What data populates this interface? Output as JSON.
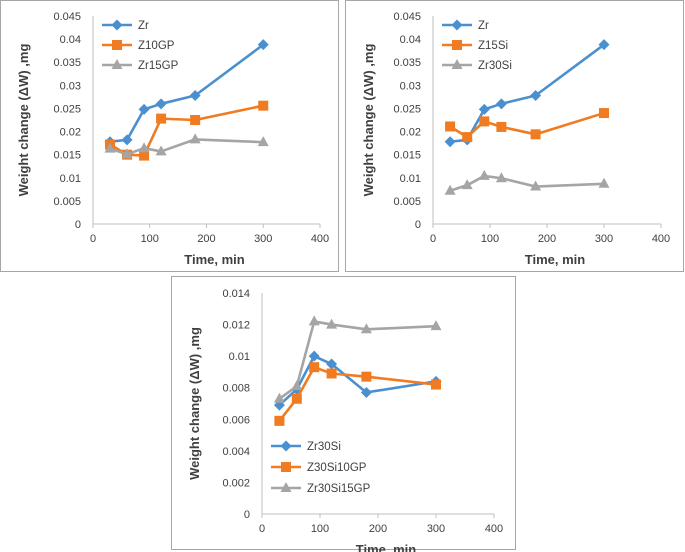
{
  "chart_data": [
    {
      "type": "line",
      "xlabel": "Time, min",
      "ylabel": "Weight change  (ΔW) ,mg",
      "xlim": [
        0,
        400
      ],
      "ylim": [
        0,
        0.045
      ],
      "xticks": [
        "0",
        "100",
        "200",
        "300",
        "400"
      ],
      "yticks": [
        "0",
        "0.005",
        "0.01",
        "0.015",
        "0.02",
        "0.025",
        "0.03",
        "0.035",
        "0.04",
        "0.045"
      ],
      "legend_position": "top-left",
      "series": [
        {
          "name": "Zr",
          "color": "#4a90d0",
          "marker": "diamond",
          "x": [
            30,
            60,
            90,
            120,
            180,
            300
          ],
          "y": [
            0.0178,
            0.0182,
            0.0248,
            0.026,
            0.0278,
            0.0388
          ]
        },
        {
          "name": "Z10GP",
          "color": "#f07b20",
          "marker": "square",
          "x": [
            30,
            60,
            90,
            120,
            180,
            300
          ],
          "y": [
            0.0172,
            0.015,
            0.0148,
            0.0228,
            0.0225,
            0.0256
          ]
        },
        {
          "name": "Zr15GP",
          "color": "#a5a5a5",
          "marker": "triangle",
          "x": [
            30,
            60,
            90,
            120,
            180,
            300
          ],
          "y": [
            0.0163,
            0.0151,
            0.0164,
            0.0157,
            0.0183,
            0.0177
          ]
        }
      ]
    },
    {
      "type": "line",
      "xlabel": "Time, min",
      "ylabel": "Weight change  (ΔW) ,mg",
      "xlim": [
        0,
        400
      ],
      "ylim": [
        0,
        0.045
      ],
      "xticks": [
        "0",
        "100",
        "200",
        "300",
        "400"
      ],
      "yticks": [
        "0",
        "0.005",
        "0.01",
        "0.015",
        "0.02",
        "0.025",
        "0.03",
        "0.035",
        "0.04",
        "0.045"
      ],
      "legend_position": "top-left",
      "series": [
        {
          "name": "Zr",
          "color": "#4a90d0",
          "marker": "diamond",
          "x": [
            30,
            60,
            90,
            120,
            180,
            300
          ],
          "y": [
            0.0178,
            0.0182,
            0.0248,
            0.026,
            0.0278,
            0.0388
          ]
        },
        {
          "name": "Z15Si",
          "color": "#f07b20",
          "marker": "square",
          "x": [
            30,
            60,
            90,
            120,
            180,
            300
          ],
          "y": [
            0.0211,
            0.0188,
            0.0222,
            0.021,
            0.0194,
            0.024
          ]
        },
        {
          "name": "Zr30Si",
          "color": "#a5a5a5",
          "marker": "triangle",
          "x": [
            30,
            60,
            90,
            120,
            180,
            300
          ],
          "y": [
            0.0072,
            0.0084,
            0.0104,
            0.0099,
            0.0081,
            0.0087
          ]
        }
      ]
    },
    {
      "type": "line",
      "xlabel": "Time, min",
      "ylabel": "Weight change  (ΔW) ,mg",
      "xlim": [
        0,
        400
      ],
      "ylim": [
        0,
        0.014
      ],
      "xticks": [
        "0",
        "100",
        "200",
        "300",
        "400"
      ],
      "yticks": [
        "0",
        "0.002",
        "0.004",
        "0.006",
        "0.008",
        "0.01",
        "0.012",
        "0.014"
      ],
      "legend_position": "bottom-left",
      "series": [
        {
          "name": "Zr30Si",
          "color": "#4a90d0",
          "marker": "diamond",
          "x": [
            30,
            60,
            90,
            120,
            180,
            300
          ],
          "y": [
            0.0069,
            0.0079,
            0.01,
            0.0095,
            0.0077,
            0.0084
          ]
        },
        {
          "name": "Z30Si10GP",
          "color": "#f07b20",
          "marker": "square",
          "x": [
            30,
            60,
            90,
            120,
            180,
            300
          ],
          "y": [
            0.0059,
            0.0073,
            0.0093,
            0.0089,
            0.0087,
            0.0082
          ]
        },
        {
          "name": "Zr30Si15GP",
          "color": "#a5a5a5",
          "marker": "triangle",
          "x": [
            30,
            60,
            90,
            120,
            180,
            300
          ],
          "y": [
            0.0073,
            0.0081,
            0.0122,
            0.012,
            0.0117,
            0.0119
          ]
        }
      ]
    }
  ]
}
